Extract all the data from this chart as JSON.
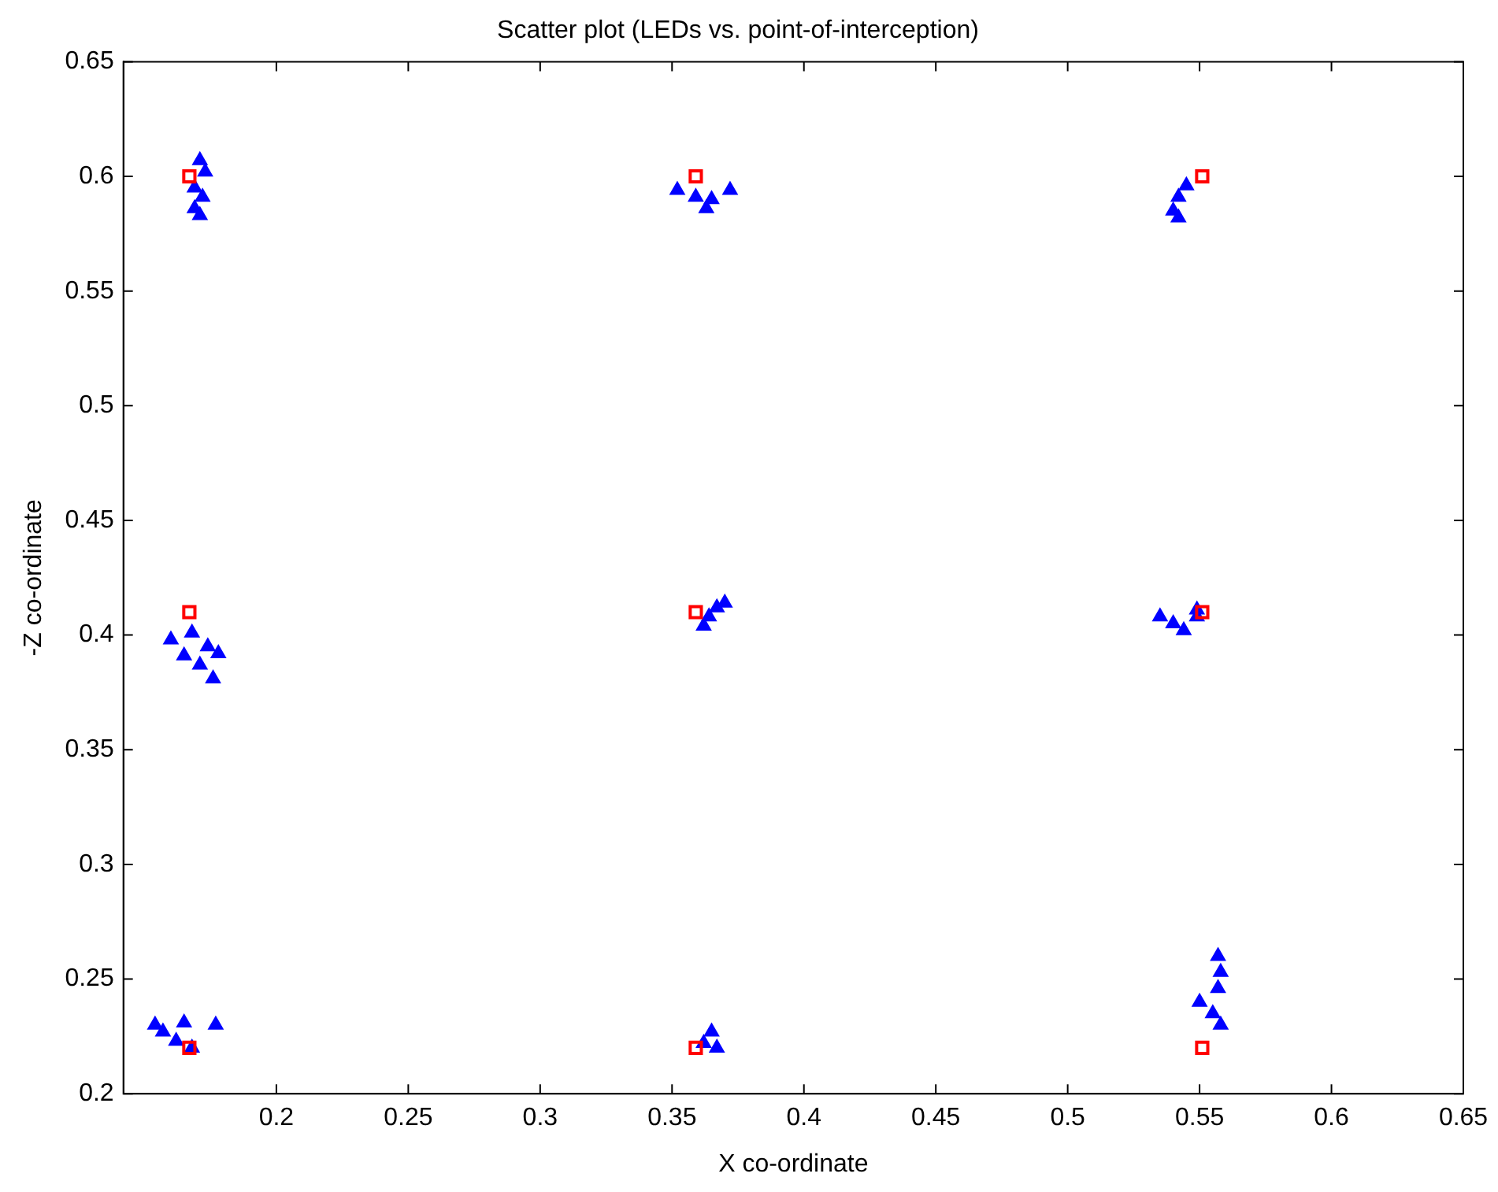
{
  "chart_data": {
    "type": "scatter",
    "title": "Scatter plot (LEDs vs. point-of-interception)",
    "xlabel": "X co-ordinate",
    "ylabel": "-Z co-ordinate",
    "xlim": [
      0.142,
      0.65
    ],
    "xticks": [
      0.2,
      0.25,
      0.3,
      0.35,
      0.4,
      0.45,
      0.5,
      0.55,
      0.6,
      0.65
    ],
    "ylim": [
      0.2,
      0.65
    ],
    "yticks": [
      0.2,
      0.25,
      0.3,
      0.35,
      0.4,
      0.45,
      0.5,
      0.55,
      0.6,
      0.65
    ],
    "grid": false,
    "legend": false,
    "series": [
      {
        "color": "#0000ff",
        "marker": "triangle",
        "x": [
          0.171,
          0.173,
          0.169,
          0.172,
          0.169,
          0.171,
          0.352,
          0.359,
          0.365,
          0.372,
          0.363,
          0.545,
          0.542,
          0.54,
          0.542,
          0.16,
          0.168,
          0.174,
          0.178,
          0.171,
          0.176,
          0.165,
          0.364,
          0.367,
          0.37,
          0.362,
          0.535,
          0.54,
          0.544,
          0.549,
          0.549,
          0.557,
          0.558,
          0.557,
          0.55,
          0.555,
          0.558,
          0.365,
          0.362,
          0.367,
          0.154,
          0.165,
          0.177,
          0.162,
          0.157,
          0.168
        ],
        "values": [
          0.607,
          0.602,
          0.595,
          0.591,
          0.586,
          0.583,
          0.594,
          0.591,
          0.59,
          0.594,
          0.586,
          0.596,
          0.591,
          0.585,
          0.582,
          0.398,
          0.401,
          0.395,
          0.392,
          0.387,
          0.381,
          0.391,
          0.408,
          0.412,
          0.414,
          0.404,
          0.408,
          0.405,
          0.402,
          0.408,
          0.411,
          0.26,
          0.253,
          0.246,
          0.24,
          0.235,
          0.23,
          0.227,
          0.222,
          0.22,
          0.23,
          0.231,
          0.23,
          0.223,
          0.227,
          0.22
        ]
      },
      {
        "color": "#ff0000",
        "marker": "square",
        "x": [
          0.167,
          0.359,
          0.551,
          0.167,
          0.359,
          0.551,
          0.167,
          0.359,
          0.551
        ],
        "values": [
          0.6,
          0.6,
          0.6,
          0.41,
          0.41,
          0.41,
          0.22,
          0.22,
          0.22
        ]
      }
    ]
  }
}
